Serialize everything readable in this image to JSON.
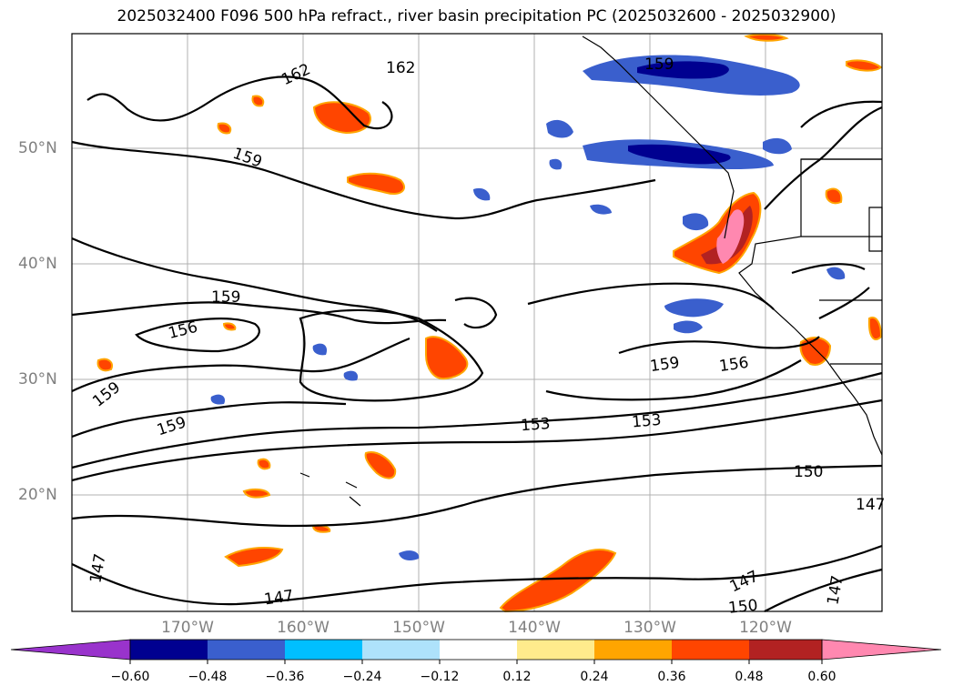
{
  "title": "2025032400 F096 500 hPa refract., river basin precipitation PC (2025032600 - 2025032900)",
  "map": {
    "lat_labels": [
      "50°N",
      "40°N",
      "30°N",
      "20°N"
    ],
    "lon_labels": [
      "170°W",
      "160°W",
      "150°W",
      "140°W",
      "130°W",
      "120°W"
    ],
    "contour_labels": [
      "162",
      "162",
      "159",
      "159",
      "159",
      "159",
      "159",
      "159",
      "156",
      "156",
      "153",
      "153",
      "150",
      "150",
      "147",
      "147",
      "147",
      "147",
      "147"
    ]
  },
  "colorbar": {
    "tick_labels": [
      "−0.60",
      "−0.48",
      "−0.36",
      "−0.24",
      "−0.12",
      "0.12",
      "0.24",
      "0.36",
      "0.48",
      "0.60"
    ],
    "colors": [
      "#9933cc",
      "#000090",
      "#3a5fcd",
      "#00bfff",
      "#aee2fb",
      "#ffffff",
      "#ffeb8c",
      "#ffa500",
      "#ff4500",
      "#b22222",
      "#ff88b0"
    ]
  }
}
